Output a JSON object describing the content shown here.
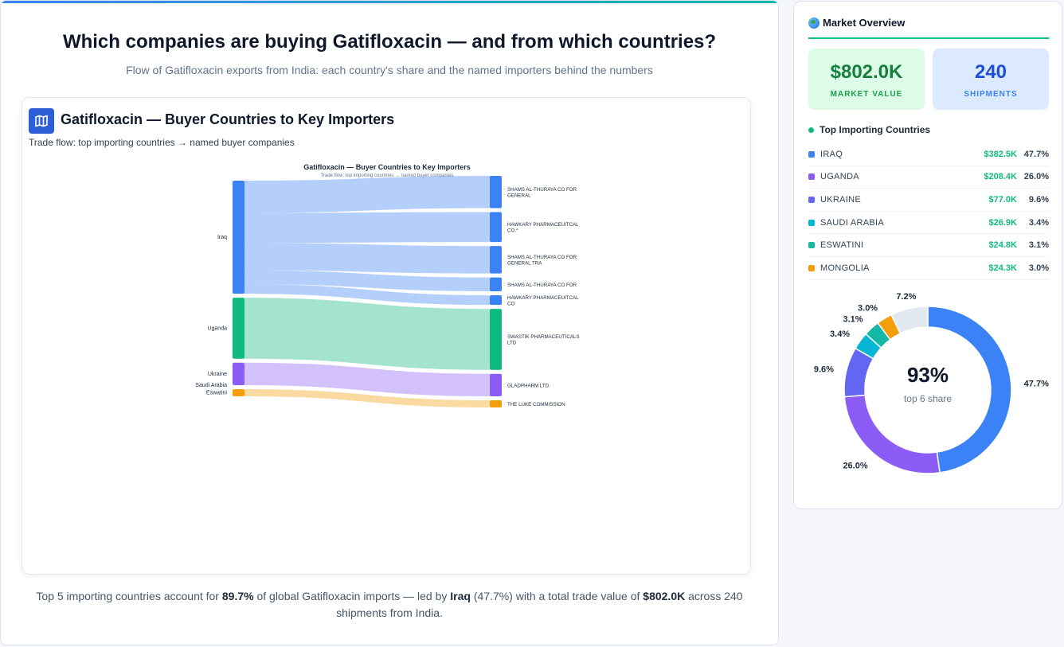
{
  "header": {
    "title": "Which companies are buying Gatifloxacin — and from which countries?",
    "subtitle": "Flow of Gatifloxacin exports from India: each country's share and the named importers behind the numbers"
  },
  "card": {
    "title": "Gatifloxacin — Buyer Countries to Key Importers",
    "subtitle": "Trade flow: top importing countries → named buyer companies"
  },
  "chart_data": [
    {
      "type": "sankey",
      "title": "Gatifloxacin — Buyer Countries to Key Importers",
      "subtitle": "Trade flow: top importing countries → named buyer companies",
      "sources": [
        {
          "name": "Iraq",
          "color": "#3b82f6"
        },
        {
          "name": "Uganda",
          "color": "#10b981"
        },
        {
          "name": "Ukraine",
          "color": "#8b5cf6"
        },
        {
          "name": "Saudi Arabia",
          "color": "#06b6d4"
        },
        {
          "name": "Eswatini",
          "color": "#f59e0b"
        }
      ],
      "targets": [
        {
          "name": "SHAMS AL-THURAYA CO FOR GENERAL",
          "color": "#3b82f6"
        },
        {
          "name": "HAWKARY PHARMACEUITCAL CO.*",
          "color": "#3b82f6"
        },
        {
          "name": "SHAMS AL-THURAYA CO FOR GENERAL TRA",
          "color": "#3b82f6"
        },
        {
          "name": "SHAMS AL-THURAYA CO FOR",
          "color": "#3b82f6"
        },
        {
          "name": "HAWKARY PHARMACEUITCAL CO",
          "color": "#3b82f6"
        },
        {
          "name": "SWASTIK PHARMACEUTICALS LTD",
          "color": "#10b981"
        },
        {
          "name": "GLADPHARM LTD.",
          "color": "#8b5cf6"
        },
        {
          "name": "THE LUKE COMMISSION",
          "color": "#f59e0b"
        }
      ],
      "links": [
        {
          "source": "Iraq",
          "target": "SHAMS AL-THURAYA CO FOR GENERAL",
          "value": 100
        },
        {
          "source": "Iraq",
          "target": "HAWKARY PHARMACEUITCAL CO.*",
          "value": 93
        },
        {
          "source": "Iraq",
          "target": "SHAMS AL-THURAYA CO FOR GENERAL TRA",
          "value": 85
        },
        {
          "source": "Iraq",
          "target": "SHAMS AL-THURAYA CO FOR",
          "value": 43
        },
        {
          "source": "Iraq",
          "target": "HAWKARY PHARMACEUITCAL CO",
          "value": 30
        },
        {
          "source": "Uganda",
          "target": "SWASTIK PHARMACEUTICALS LTD",
          "value": 189
        },
        {
          "source": "Ukraine",
          "target": "GLADPHARM LTD.",
          "value": 70
        },
        {
          "source": "Eswatini",
          "target": "THE LUKE COMMISSION",
          "value": 22
        }
      ]
    },
    {
      "type": "pie",
      "center_value": "93%",
      "center_label": "top 6 share",
      "slices": [
        {
          "label": "47.7%",
          "value": 47.7,
          "color": "#3b82f6"
        },
        {
          "label": "26.0%",
          "value": 26.0,
          "color": "#8b5cf6"
        },
        {
          "label": "9.6%",
          "value": 9.6,
          "color": "#6366f1"
        },
        {
          "label": "3.4%",
          "value": 3.4,
          "color": "#06b6d4"
        },
        {
          "label": "3.1%",
          "value": 3.1,
          "color": "#14b8a6"
        },
        {
          "label": "3.0%",
          "value": 3.0,
          "color": "#f59e0b"
        },
        {
          "label": "7.2%",
          "value": 7.2,
          "color": "#e2e8f0"
        }
      ]
    }
  ],
  "footer": {
    "t1": "Top 5 importing countries account for ",
    "share": "89.7%",
    "t2": " of global Gatifloxacin imports — led by ",
    "leader": "Iraq",
    "t3": " (47.7%) with a total trade value of ",
    "total": "$802.0K",
    "t4": " across 240 shipments from India."
  },
  "sidebar": {
    "title": "Market Overview",
    "market_value": "$802.0K",
    "market_value_label": "MARKET VALUE",
    "shipments": "240",
    "shipments_label": "SHIPMENTS",
    "countries_title": "Top Importing Countries",
    "countries": [
      {
        "name": "IRAQ",
        "value": "$382.5K",
        "pct": "47.7%",
        "color": "#3b82f6"
      },
      {
        "name": "UGANDA",
        "value": "$208.4K",
        "pct": "26.0%",
        "color": "#8b5cf6"
      },
      {
        "name": "UKRAINE",
        "value": "$77.0K",
        "pct": "9.6%",
        "color": "#6366f1"
      },
      {
        "name": "SAUDI ARABIA",
        "value": "$26.9K",
        "pct": "3.4%",
        "color": "#06b6d4"
      },
      {
        "name": "ESWATINI",
        "value": "$24.8K",
        "pct": "3.1%",
        "color": "#14b8a6"
      },
      {
        "name": "MONGOLIA",
        "value": "$24.3K",
        "pct": "3.0%",
        "color": "#f59e0b"
      }
    ]
  }
}
